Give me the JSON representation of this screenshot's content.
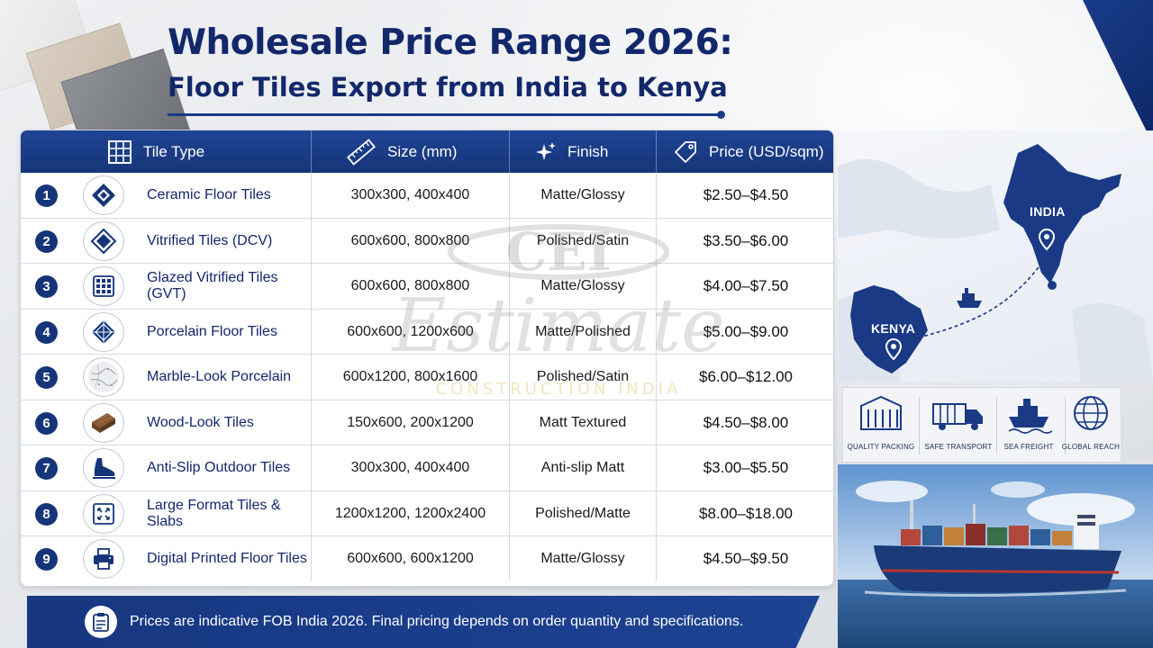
{
  "header": {
    "title": "Wholesale Price Range 2026:",
    "subtitle": "Floor Tiles Export from India to Kenya"
  },
  "table": {
    "columns": [
      {
        "label": "Tile Type",
        "icon": "grid-icon"
      },
      {
        "label": "Size (mm)",
        "icon": "ruler-icon"
      },
      {
        "label": "Finish",
        "icon": "sparkle-icon"
      },
      {
        "label": "Price (USD/sqm)",
        "icon": "price-tag-icon"
      }
    ],
    "rows": [
      {
        "num": "1",
        "type": "Ceramic Floor Tiles",
        "size": "300x300, 400x400",
        "finish": "Matte/Glossy",
        "price": "$2.50–$4.50",
        "icon": "diamond-tile-icon"
      },
      {
        "num": "2",
        "type": "Vitrified Tiles (DCV)",
        "size": "600x600, 800x800",
        "finish": "Polished/Satin",
        "price": "$3.50–$6.00",
        "icon": "layered-diamond-icon"
      },
      {
        "num": "3",
        "type": "Glazed Vitrified Tiles (GVT)",
        "size": "600x600, 800x800",
        "finish": "Matte/Glossy",
        "price": "$4.00–$7.50",
        "icon": "tile-grid-icon"
      },
      {
        "num": "4",
        "type": "Porcelain Floor Tiles",
        "size": "600x600, 1200x600",
        "finish": "Matte/Polished",
        "price": "$5.00–$9.00",
        "icon": "porcelain-diamond-icon"
      },
      {
        "num": "5",
        "type": "Marble-Look Porcelain",
        "size": "600x1200, 800x1600",
        "finish": "Polished/Satin",
        "price": "$6.00–$12.00",
        "icon": "marble-texture-icon"
      },
      {
        "num": "6",
        "type": "Wood-Look Tiles",
        "size": "150x600, 200x1200",
        "finish": "Matt Textured",
        "price": "$4.50–$8.00",
        "icon": "wood-plank-icon"
      },
      {
        "num": "7",
        "type": "Anti-Slip Outdoor Tiles",
        "size": "300x300, 400x400",
        "finish": "Anti-slip Matt",
        "price": "$3.00–$5.50",
        "icon": "shoe-icon"
      },
      {
        "num": "8",
        "type": "Large Format Tiles & Slabs",
        "size": "1200x1200, 1200x2400",
        "finish": "Polished/Matte",
        "price": "$8.00–$18.00",
        "icon": "expand-icon"
      },
      {
        "num": "9",
        "type": "Digital Printed Floor Tiles",
        "size": "600x600, 600x1200",
        "finish": "Matte/Glossy",
        "price": "$4.50–$9.50",
        "icon": "printer-icon"
      }
    ]
  },
  "watermark": {
    "monogram": "CEI",
    "word": "Estimate",
    "tagline": "CONSTRUCTION INDIA"
  },
  "footer": {
    "note": "Prices are indicative FOB India 2026. Final pricing depends on order quantity and specifications.",
    "icon": "clipboard-icon"
  },
  "map": {
    "origin_label": "INDIA",
    "destination_label": "KENYA"
  },
  "features": [
    {
      "label": "QUALITY PACKING",
      "icon": "container-icon"
    },
    {
      "label": "SAFE TRANSPORT",
      "icon": "truck-icon"
    },
    {
      "label": "SEA FREIGHT",
      "icon": "ship-icon"
    },
    {
      "label": "GLOBAL REACH",
      "icon": "globe-icon"
    }
  ],
  "colors": {
    "navy": "#163579",
    "title": "#13276b",
    "accent_blue": "#1f4494"
  }
}
